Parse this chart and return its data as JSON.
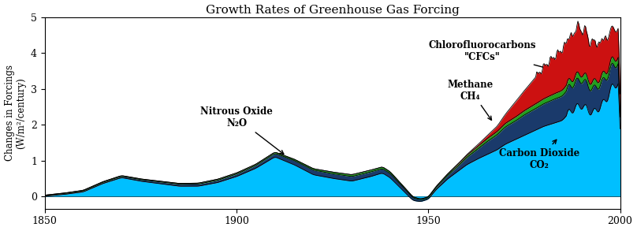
{
  "title": "Growth Rates of Greenhouse Gas Forcing",
  "ylabel": "Changes in Forcings\n(W/m²/century)",
  "xlim": [
    1850,
    2000
  ],
  "ylim": [
    -0.35,
    5
  ],
  "yticks": [
    0,
    1,
    2,
    3,
    4,
    5
  ],
  "xticks": [
    1850,
    1900,
    1950,
    2000
  ],
  "colors": {
    "co2": "#00BFFF",
    "ch4": "#1A3A6B",
    "n2o": "#22A020",
    "cfc": "#CC1111"
  }
}
